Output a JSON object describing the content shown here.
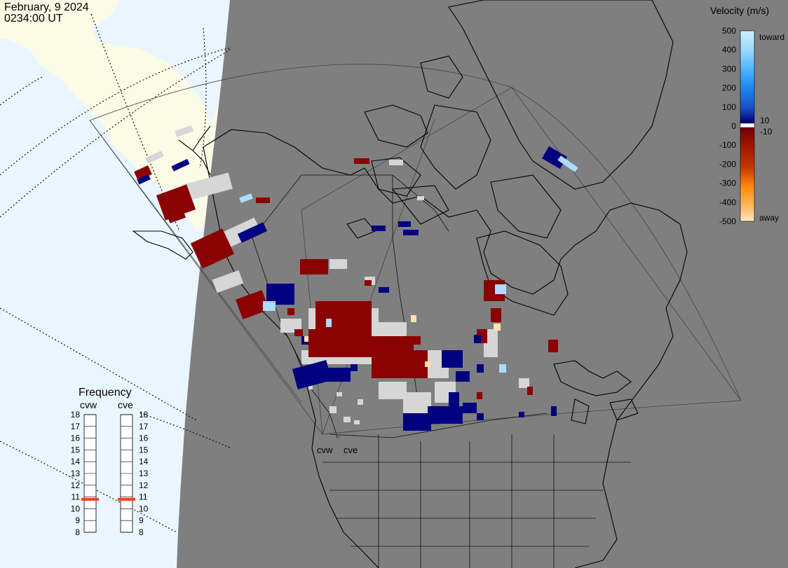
{
  "title": {
    "date": "February, 9 2024",
    "time": "0234:00 UT"
  },
  "colors": {
    "day_bg": "#eaf6ff",
    "night": "#7f7f7f",
    "land_day": "#fbfbe6",
    "ground_scatter": "#d6d6d6",
    "dark_red": "#8b0000",
    "dark_blue": "#000080",
    "light_blue": "#aadcff",
    "peach": "#ffe0b0",
    "freq_marker": "#e8471c"
  },
  "legend": {
    "title": "Velocity (m/s)",
    "toward_label": "toward",
    "away_label": "away",
    "ticks": [
      "500",
      "400",
      "300",
      "200",
      "100",
      "0",
      "-100",
      "-200",
      "-300",
      "-400",
      "-500"
    ],
    "small_ticks": [
      "10",
      "-10"
    ],
    "stops": [
      "#cfeeff",
      "#9bd8ff",
      "#52b4ff",
      "#1f86ef",
      "#1a54c6",
      "#0c2a96",
      "#000078",
      "#7a0000",
      "#a31c00",
      "#c33a00",
      "#e65a00",
      "#ff8c10",
      "#ffb760",
      "#ffd9ab"
    ]
  },
  "frequency": {
    "title": "Frequency",
    "radars": [
      {
        "name": "cvw",
        "value_mhz": 10.8
      },
      {
        "name": "cve",
        "value_mhz": 10.8
      }
    ],
    "scale": [
      "18",
      "17",
      "16",
      "15",
      "14",
      "13",
      "12",
      "11",
      "10",
      "9",
      "8"
    ]
  },
  "map_labels": {
    "radar_west": "cvw",
    "radar_east": "cve"
  }
}
